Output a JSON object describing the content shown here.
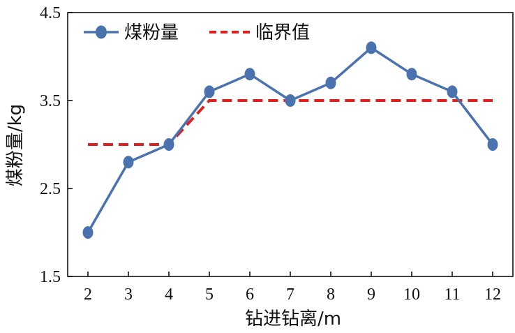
{
  "chart_data": {
    "type": "line",
    "xlabel": "钻进钻离/m",
    "ylabel": "煤粉量/kg",
    "x": [
      2,
      3,
      4,
      5,
      6,
      7,
      8,
      9,
      10,
      11,
      12
    ],
    "xlim": [
      1.5,
      12.5
    ],
    "ylim": [
      1.5,
      4.5
    ],
    "x_ticks": [
      "2",
      "3",
      "4",
      "5",
      "6",
      "7",
      "8",
      "9",
      "10",
      "11",
      "12"
    ],
    "y_ticks": [
      "1.5",
      "2.5",
      "3.5",
      "4.5"
    ],
    "grid": false,
    "legend_position": "top-left",
    "series": [
      {
        "name": "煤粉量",
        "style": "solid-with-markers",
        "color": "#4A72AE",
        "values": [
          2.0,
          2.8,
          3.0,
          3.6,
          3.8,
          3.5,
          3.7,
          4.1,
          3.8,
          3.6,
          3.0
        ]
      },
      {
        "name": "临界值",
        "style": "dashed",
        "color": "#E02020",
        "values": [
          3.0,
          3.0,
          3.0,
          3.5,
          3.5,
          3.5,
          3.5,
          3.5,
          3.5,
          3.5,
          3.5
        ]
      }
    ]
  }
}
